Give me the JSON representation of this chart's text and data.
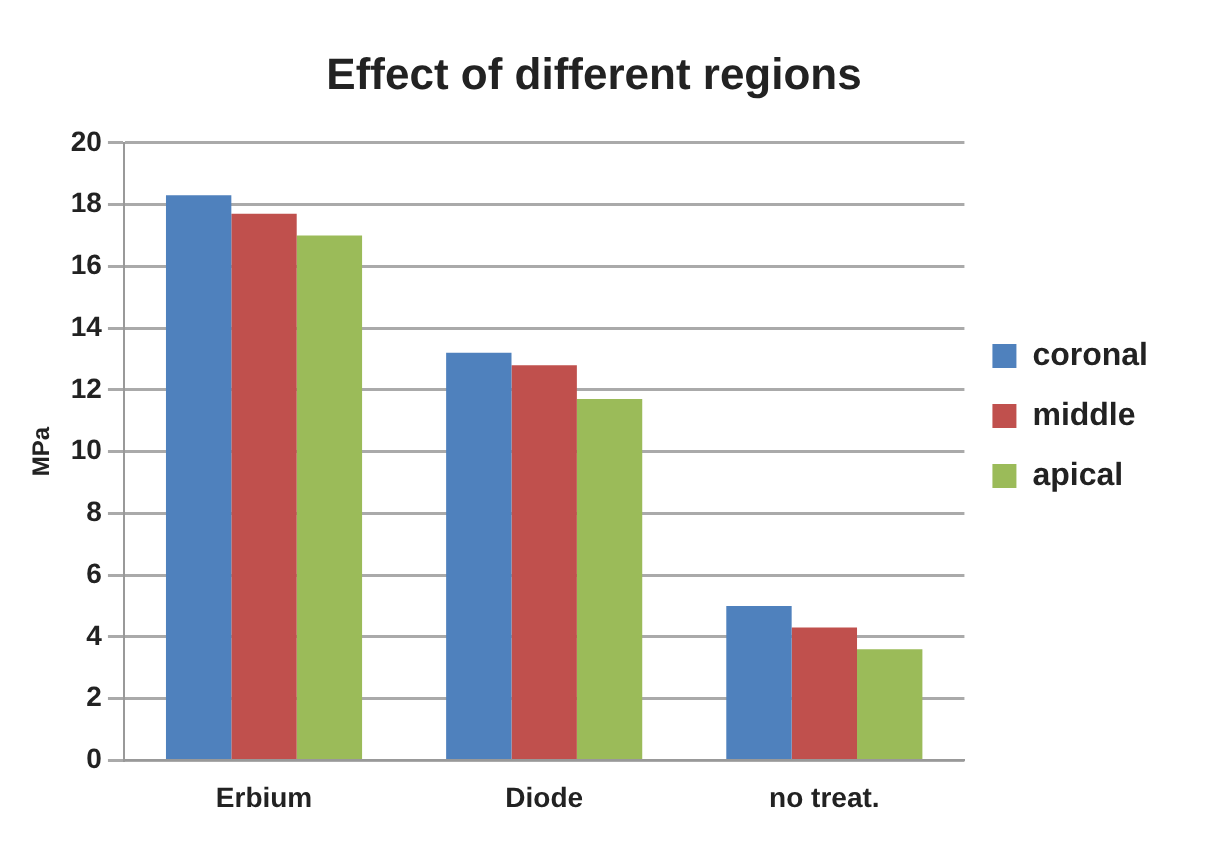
{
  "chart_data": {
    "type": "bar",
    "title": "Effect of different regions",
    "ylabel": "MPa",
    "categories": [
      "Erbium",
      "Diode",
      "no treat."
    ],
    "series": [
      {
        "name": "coronal",
        "color": "#4f81bd",
        "values": [
          18.3,
          13.2,
          5.0
        ]
      },
      {
        "name": "middle",
        "color": "#c0504d",
        "values": [
          17.7,
          12.8,
          4.3
        ]
      },
      {
        "name": "apical",
        "color": "#9bbb59",
        "values": [
          17.0,
          11.7,
          3.6
        ]
      }
    ],
    "ylim": [
      0,
      20
    ],
    "yticks": [
      0,
      2,
      4,
      6,
      8,
      10,
      12,
      14,
      16,
      18,
      20
    ],
    "grid": "y",
    "legend": "right"
  }
}
